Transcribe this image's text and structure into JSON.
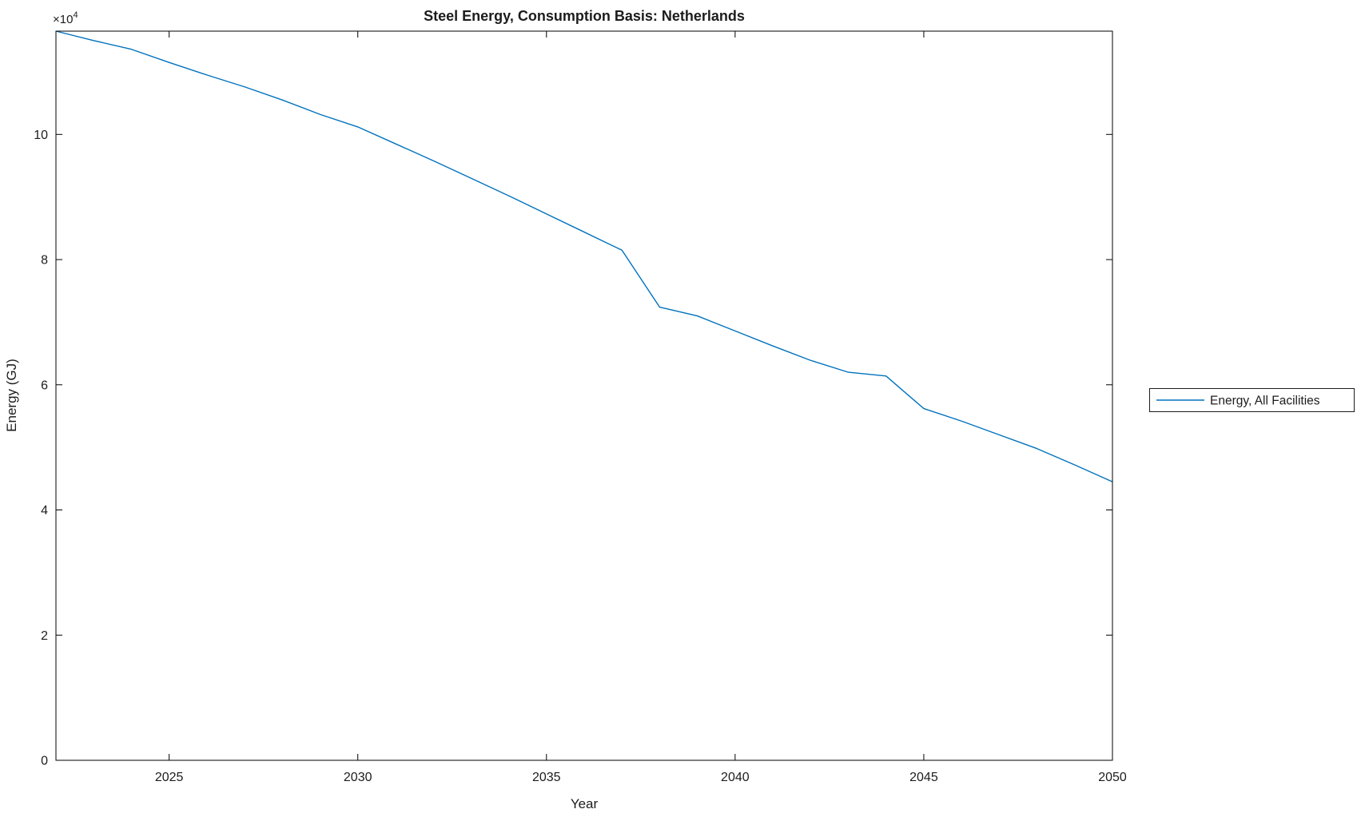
{
  "chart_data": {
    "type": "line",
    "title": "Steel Energy, Consumption Basis: Netherlands",
    "xlabel": "Year",
    "ylabel": "Energy (GJ)",
    "y_multiplier_base": "×10",
    "y_multiplier_exp": "4",
    "y_unit": "×10⁴ GJ",
    "xlim": [
      2022,
      2050
    ],
    "ylim": [
      0,
      11.65
    ],
    "xticks": [
      2025,
      2030,
      2035,
      2040,
      2045,
      2050
    ],
    "xtick_labels": [
      "2025",
      "2030",
      "2035",
      "2040",
      "2045",
      "2050"
    ],
    "yticks": [
      0,
      2,
      4,
      6,
      8,
      10
    ],
    "ytick_labels": [
      "0",
      "2",
      "4",
      "6",
      "8",
      "10"
    ],
    "grid": false,
    "box": true,
    "legend": {
      "position": "right-outside",
      "entries": [
        {
          "label": "Energy, All Facilities",
          "color": "#0072BD"
        }
      ]
    },
    "series": [
      {
        "name": "Energy, All Facilities",
        "color": "#0072BD",
        "x": [
          2022,
          2023,
          2024,
          2025,
          2026,
          2027,
          2028,
          2029,
          2030,
          2031,
          2032,
          2033,
          2034,
          2035,
          2036,
          2037,
          2038,
          2039,
          2040,
          2041,
          2042,
          2043,
          2044,
          2045,
          2046,
          2047,
          2048,
          2049,
          2050
        ],
        "values": [
          11.65,
          11.5,
          11.36,
          11.15,
          10.95,
          10.76,
          10.55,
          10.32,
          10.12,
          9.85,
          9.58,
          9.3,
          9.02,
          8.73,
          8.44,
          8.15,
          7.24,
          7.1,
          6.86,
          6.62,
          6.39,
          6.2,
          6.14,
          5.62,
          5.42,
          5.2,
          4.98,
          4.72,
          4.45
        ]
      }
    ]
  }
}
